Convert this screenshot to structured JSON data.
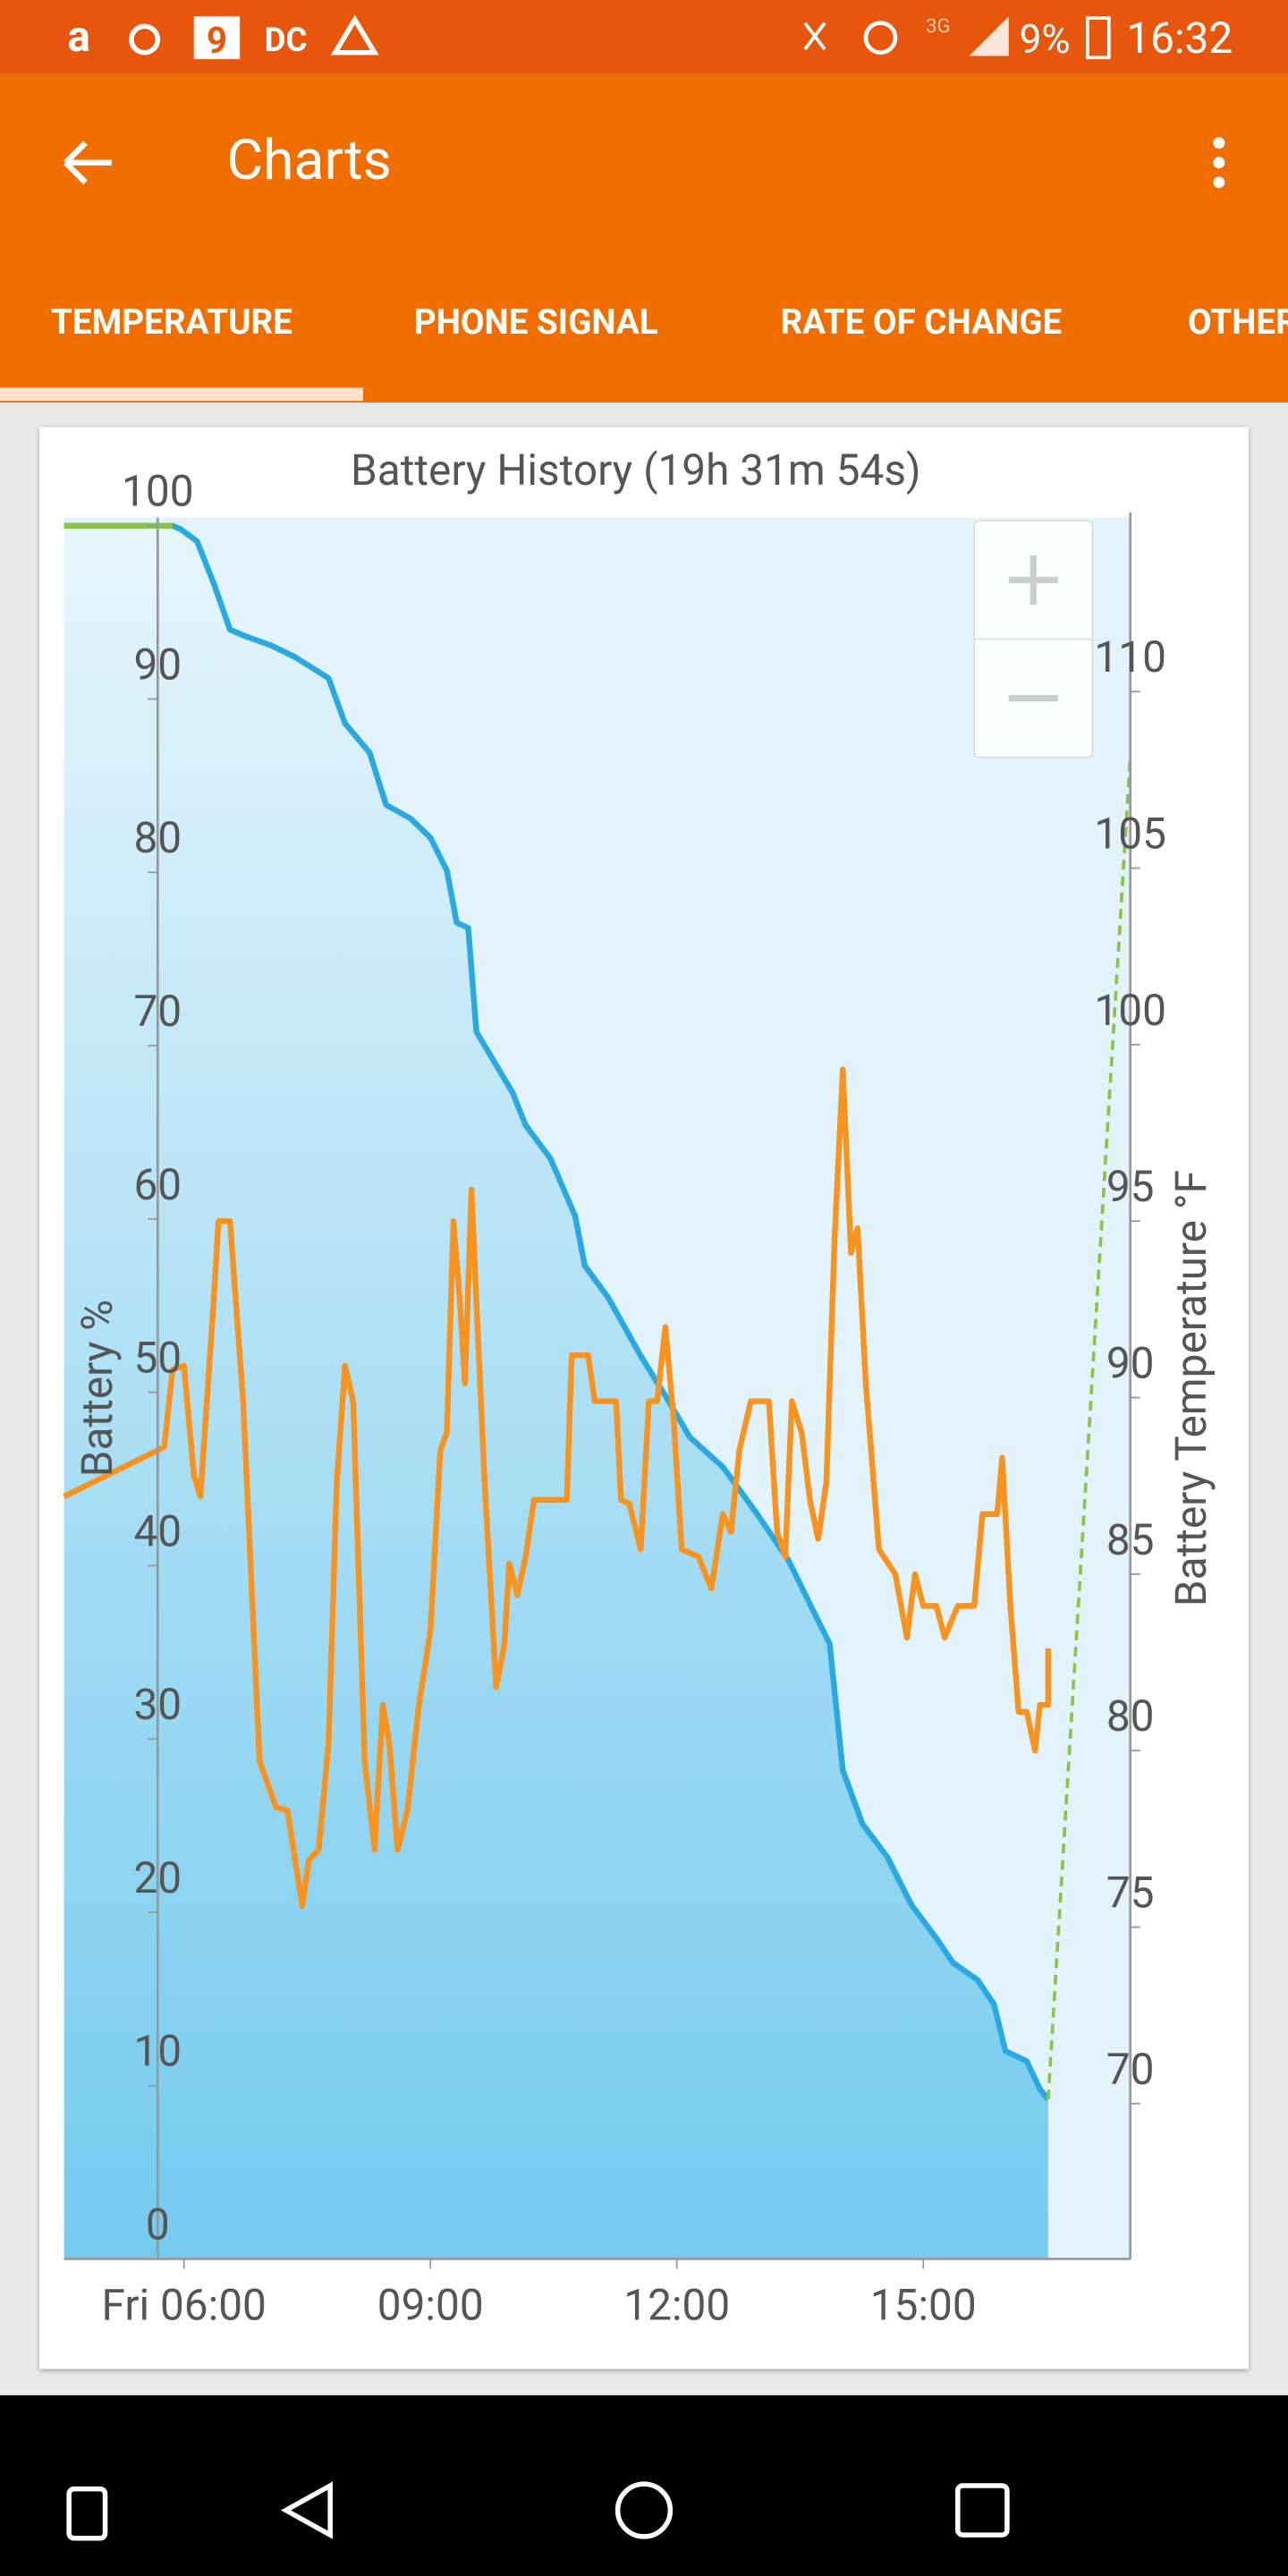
{
  "status_bar": {
    "notification_icons": [
      "9",
      "DC"
    ],
    "network": "3G",
    "battery": "9%",
    "time": "16:32"
  },
  "app_bar": {
    "title": "Charts"
  },
  "tabs": [
    "TEMPERATURE",
    "PHONE SIGNAL",
    "RATE OF CHANGE",
    "OTHER"
  ],
  "chart_data": {
    "type": "line",
    "title": "Battery History (19h 31m 54s)",
    "y_label": "Battery %",
    "y2_label": "Battery Temperature °F",
    "xlim": [
      4.54,
      17.52
    ],
    "xticks": [
      {
        "value": 6,
        "label": "Fri 06:00"
      },
      {
        "value": 9,
        "label": "09:00"
      },
      {
        "value": 12,
        "label": "12:00"
      },
      {
        "value": 15,
        "label": "15:00"
      }
    ],
    "ylim": [
      0,
      100
    ],
    "yticks": [
      0,
      10,
      20,
      30,
      40,
      50,
      60,
      70,
      80,
      90,
      100
    ],
    "y2lim": [
      65.6,
      114.7
    ],
    "y2ticks": [
      70,
      75,
      80,
      85,
      90,
      95,
      100,
      105,
      110
    ],
    "series": [
      {
        "color": "#29a9e0",
        "area": true,
        "x": [
          4.54,
          5.86,
          5.96,
          6.16,
          6.36,
          6.56,
          6.76,
          7.06,
          7.36,
          7.76,
          7.96,
          8.26,
          8.46,
          8.76,
          9.0,
          9.2,
          9.32,
          9.46,
          9.56,
          9.76,
          10.0,
          10.16,
          10.46,
          10.76,
          10.88,
          11.16,
          11.56,
          11.86,
          12.16,
          12.56,
          12.96,
          13.36,
          13.66,
          13.86,
          14.02,
          14.26,
          14.56,
          14.86,
          15.16,
          15.36,
          15.66,
          15.86,
          16.0,
          16.26,
          16.42,
          16.52
        ],
        "values": [
          100,
          100,
          99.8,
          99.1,
          96.7,
          94.0,
          93.6,
          93.1,
          92.4,
          91.2,
          88.6,
          86.9,
          83.9,
          83.1,
          82.0,
          80.1,
          77.1,
          76.8,
          70.8,
          69.2,
          67.3,
          65.4,
          63.5,
          60.2,
          57.3,
          55.5,
          52.1,
          49.8,
          47.4,
          45.7,
          43.1,
          40.3,
          37.4,
          35.5,
          28.2,
          25.1,
          23.2,
          20.4,
          18.5,
          17.1,
          16.1,
          14.7,
          12.0,
          11.4,
          9.8,
          9.2
        ]
      },
      {
        "color": "#8bc34a",
        "x": [
          4.54,
          5.86
        ],
        "values": [
          100,
          100
        ]
      },
      {
        "color": "#8bc34a",
        "dashed": true,
        "x": [
          16.52,
          17.52
        ],
        "values": [
          9.2,
          86.7
        ]
      },
      {
        "color": "#f7931e",
        "axis": "y2",
        "x": [
          4.54,
          5.76,
          5.86,
          6.0,
          6.12,
          6.2,
          6.36,
          6.42,
          6.56,
          6.72,
          6.92,
          7.12,
          7.26,
          7.44,
          7.52,
          7.64,
          7.76,
          7.86,
          7.96,
          8.06,
          8.2,
          8.32,
          8.42,
          8.5,
          8.6,
          8.72,
          8.86,
          9.0,
          9.12,
          9.2,
          9.28,
          9.36,
          9.42,
          9.5,
          9.56,
          9.66,
          9.8,
          9.9,
          9.96,
          10.06,
          10.16,
          10.26,
          10.66,
          10.72,
          10.92,
          11.0,
          11.26,
          11.32,
          11.42,
          11.56,
          11.66,
          11.76,
          11.86,
          11.96,
          12.06,
          12.26,
          12.42,
          12.56,
          12.66,
          12.76,
          12.9,
          13.12,
          13.22,
          13.32,
          13.4,
          13.52,
          13.62,
          13.72,
          13.82,
          13.92,
          14.02,
          14.12,
          14.2,
          14.3,
          14.46,
          14.66,
          14.8,
          14.9,
          15.0,
          15.16,
          15.26,
          15.42,
          15.62,
          15.72,
          15.9,
          15.96,
          16.06,
          16.16,
          16.26,
          16.36,
          16.42,
          16.52,
          16.52
        ],
        "values": [
          87.2,
          88.6,
          90.8,
          90.9,
          87.8,
          87.2,
          92.7,
          95.0,
          95.0,
          89.9,
          79.7,
          78.4,
          78.3,
          75.6,
          76.9,
          77.2,
          80.2,
          87.6,
          90.9,
          89.9,
          79.7,
          77.2,
          81.3,
          80.2,
          77.2,
          78.3,
          81.3,
          83.4,
          88.5,
          89.0,
          95.0,
          92.7,
          90.4,
          95.9,
          92.7,
          87.6,
          81.8,
          83.0,
          85.3,
          84.4,
          85.5,
          87.1,
          87.1,
          91.2,
          91.2,
          89.9,
          89.9,
          87.1,
          87.0,
          85.7,
          89.9,
          89.9,
          92.0,
          89.4,
          85.7,
          85.5,
          84.6,
          86.7,
          86.2,
          88.5,
          89.9,
          89.9,
          86.2,
          85.5,
          89.9,
          89.0,
          87.1,
          86.0,
          87.6,
          94.5,
          99.3,
          94.1,
          94.8,
          90.4,
          85.7,
          85.0,
          83.2,
          85.0,
          84.1,
          84.1,
          83.2,
          84.1,
          84.1,
          86.7,
          86.7,
          88.3,
          84.1,
          81.1,
          81.1,
          80.0,
          81.3,
          81.3,
          82.9
        ]
      }
    ]
  }
}
